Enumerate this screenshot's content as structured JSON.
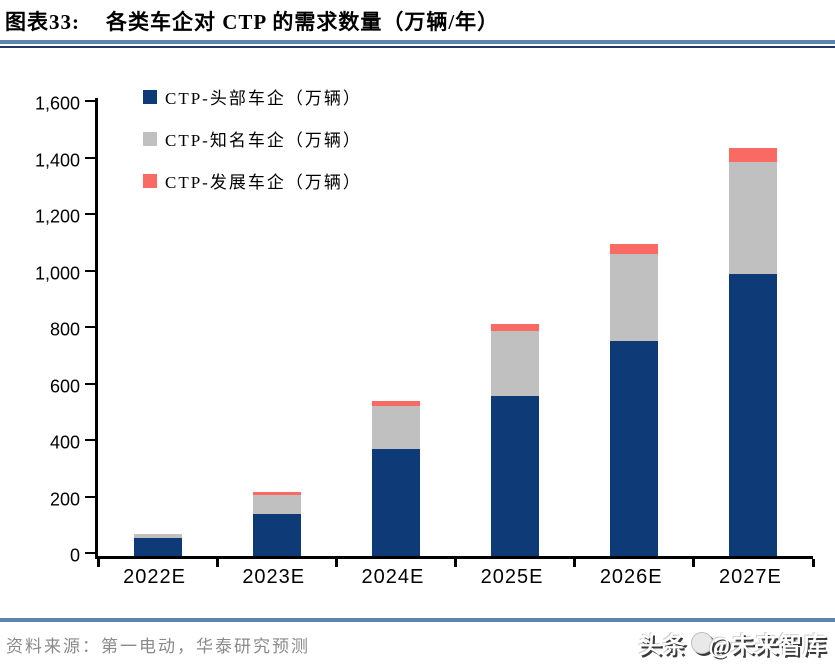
{
  "header": {
    "figure_label": "图表33:",
    "title": "各类车企对 CTP 的需求数量（万辆/年）"
  },
  "chart_data": {
    "type": "bar",
    "stacked": true,
    "title": "各类车企对 CTP 的需求数量（万辆/年）",
    "categories": [
      "2022E",
      "2023E",
      "2024E",
      "2025E",
      "2026E",
      "2027E"
    ],
    "series": [
      {
        "name": "CTP-头部车企（万辆）",
        "color": "#0e3a78",
        "values": [
          65,
          150,
          380,
          565,
          760,
          1000
        ]
      },
      {
        "name": "CTP-知名车企（万辆）",
        "color": "#c0c0c0",
        "values": [
          12,
          65,
          150,
          230,
          310,
          395
        ]
      },
      {
        "name": "CTP-发展车企（万辆）",
        "color": "#fa6a64",
        "values": [
          0,
          10,
          20,
          25,
          35,
          50
        ]
      }
    ],
    "xlabel": "",
    "ylabel": "",
    "ylim": [
      0,
      1600
    ],
    "ytick_step": 200,
    "grid": false,
    "legend_position": "top-left"
  },
  "footer": {
    "source": "资料来源：第一电动，华泰研究预测",
    "watermark_prefix": "头条",
    "watermark_suffix": "@未来智库"
  },
  "colors": {
    "bar_head": "#0e3a78",
    "bar_known": "#c0c0c0",
    "bar_developing": "#fa6a64",
    "rule_steel_blue": "#5b84b0",
    "rule_navy": "#1f3864",
    "source_text": "#8a8a8a"
  }
}
